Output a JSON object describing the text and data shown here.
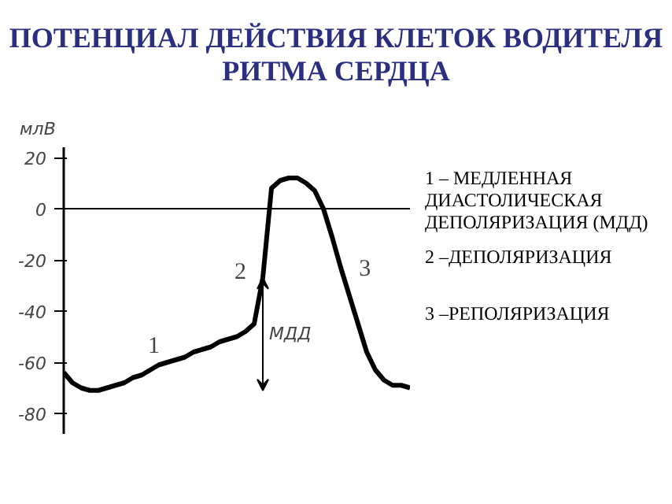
{
  "chart_data": {
    "type": "line",
    "title": "ПОТЕНЦИАЛ ДЕЙСТВИЯ КЛЕТОК ВОДИТЕЛЯ РИТМА СЕРДЦА",
    "ylabel": "млВ",
    "categories": [
      null,
      null,
      null,
      null,
      null,
      null,
      null,
      null,
      null,
      null,
      null,
      null,
      null,
      null,
      null,
      null,
      null,
      null,
      null,
      null,
      null,
      null,
      null,
      null,
      null,
      null,
      null,
      null,
      null,
      null,
      null,
      null,
      null,
      null,
      null,
      null,
      null,
      null,
      null,
      null,
      null
    ],
    "series": [
      {
        "color": "#000000",
        "values": [
          -64,
          -68,
          -70,
          -71,
          -71,
          -70,
          -69,
          -68,
          -66,
          -65,
          -63,
          -61,
          -60,
          -59,
          -58,
          -56,
          -55,
          -54,
          -52,
          -51,
          -50,
          -48,
          -45,
          -27,
          8,
          11,
          12,
          12,
          10,
          7,
          0,
          -11,
          -23,
          -34,
          -45,
          -56,
          -63,
          -67,
          -69,
          -69,
          -70
        ]
      }
    ],
    "ylim": [
      -88,
      24
    ],
    "yticks": [
      20,
      0,
      -20,
      -40,
      -60,
      -80
    ],
    "tick_labels": "y",
    "ref_lines": [
      {
        "axis": "y",
        "value": 0,
        "label": null
      }
    ],
    "annotations": [
      "1",
      "2",
      "3",
      "МДД",
      "1 – МЕДЛЕННАЯ ДИАСТОЛИЧЕСКАЯ ДЕПОЛЯРИЗАЦИЯ (МДД)",
      "2 –ДЕПОЛЯРИЗАЦИЯ",
      "3 –РЕПОЛЯРИЗАЦИЯ"
    ]
  }
}
